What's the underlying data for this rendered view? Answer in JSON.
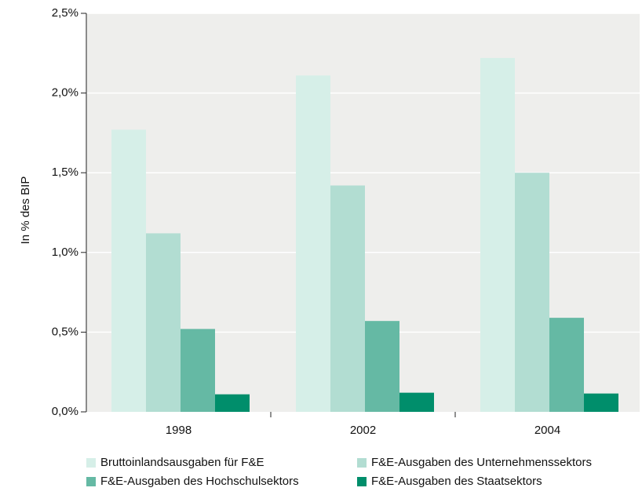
{
  "chart_data": {
    "type": "bar",
    "categories": [
      "1998",
      "2002",
      "2004"
    ],
    "series": [
      {
        "name": "Bruttoinlandsausgaben für F&E",
        "values": [
          1.77,
          2.11,
          2.22
        ],
        "color": "#d6efe8"
      },
      {
        "name": "F&E-Ausgaben des Unternehmenssektors",
        "values": [
          1.12,
          1.42,
          1.5
        ],
        "color": "#b2ddd2"
      },
      {
        "name": "F&E-Ausgaben des Hochschulsektors",
        "values": [
          0.52,
          0.57,
          0.59
        ],
        "color": "#65b9a4"
      },
      {
        "name": "F&E-Ausgaben des Staatsektors",
        "values": [
          0.11,
          0.12,
          0.115
        ],
        "color": "#008e6b"
      }
    ],
    "title": "",
    "xlabel": "",
    "ylabel": "In % des BIP",
    "ylim": [
      0,
      2.5
    ],
    "yticks": [
      "0,0%",
      "0,5%",
      "1,0%",
      "1,5%",
      "2,0%",
      "2,5%"
    ],
    "grid": true,
    "plot_background": "#eeeeec",
    "legend_position": "bottom"
  }
}
